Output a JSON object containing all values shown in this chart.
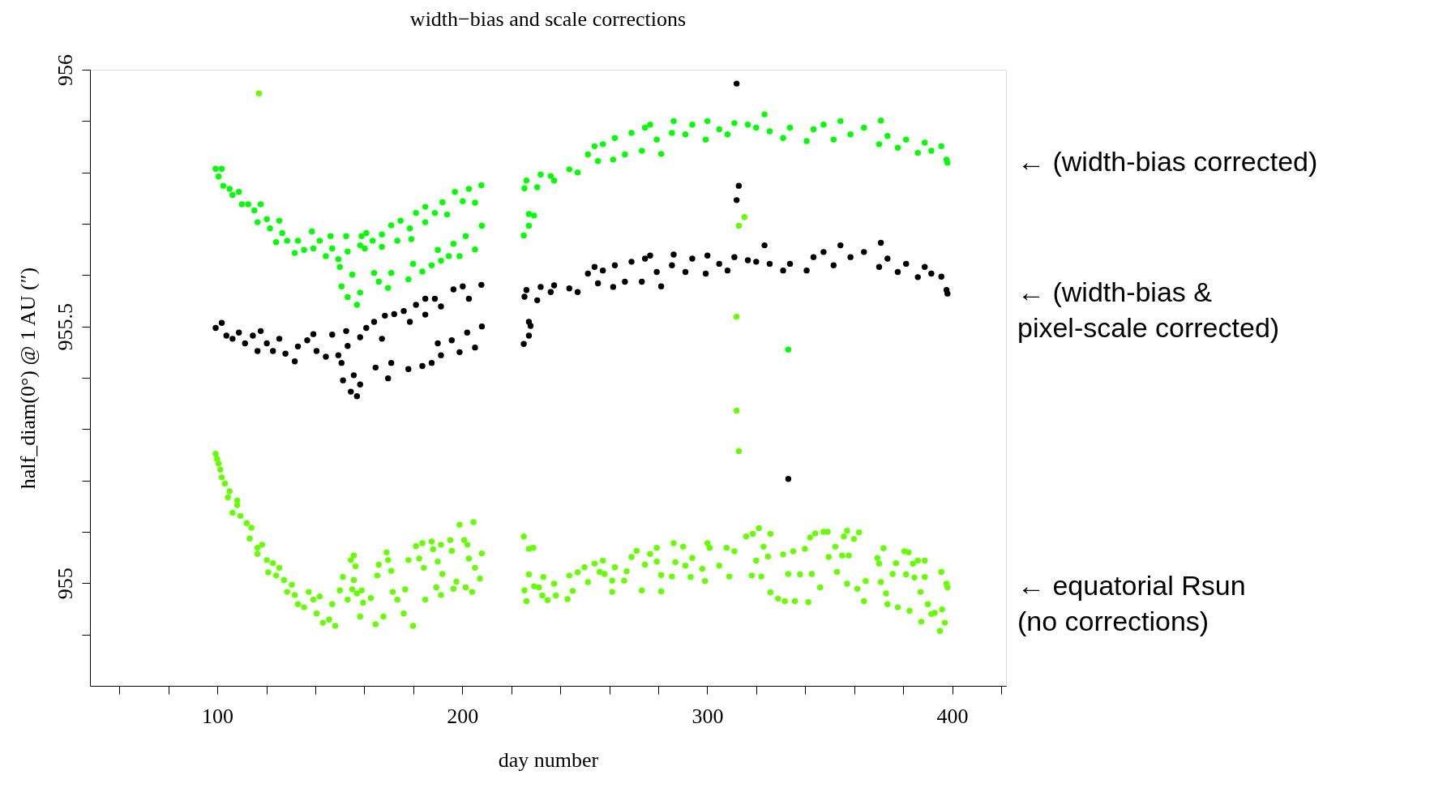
{
  "chart_data": {
    "type": "scatter",
    "title": "width−bias and scale corrections",
    "xlabel": "day number",
    "ylabel": "half_diam(0°) @ 1 AU  (″)",
    "xlim": [
      48,
      422
    ],
    "ylim": [
      954.8,
      956
    ],
    "xticks": [
      {
        "value": 60,
        "label": null
      },
      {
        "value": 80,
        "label": null
      },
      100,
      {
        "value": 120,
        "label": null
      },
      {
        "value": 140,
        "label": null
      },
      {
        "value": 160,
        "label": null
      },
      {
        "value": 180,
        "label": null
      },
      200,
      {
        "value": 220,
        "label": null
      },
      {
        "value": 240,
        "label": null
      },
      {
        "value": 260,
        "label": null
      },
      {
        "value": 280,
        "label": null
      },
      300,
      {
        "value": 320,
        "label": null
      },
      {
        "value": 340,
        "label": null
      },
      {
        "value": 360,
        "label": null
      },
      {
        "value": 380,
        "label": null
      },
      400,
      {
        "value": 420,
        "label": null
      }
    ],
    "yticks": [
      {
        "value": 954.9,
        "label": null
      },
      955,
      {
        "value": 955.1,
        "label": null
      },
      {
        "value": 955.2,
        "label": null
      },
      {
        "value": 955.3,
        "label": null
      },
      {
        "value": 955.4,
        "label": null
      },
      955.5,
      {
        "value": 955.6,
        "label": null
      },
      {
        "value": 955.7,
        "label": null
      },
      {
        "value": 955.8,
        "label": null
      },
      {
        "value": 955.9,
        "label": null
      },
      956
    ],
    "grid": false,
    "marker": "circle",
    "series": [
      {
        "name": "← (width-bias corrected)",
        "color": "#00ff00",
        "x": [
          99.3,
          101.8,
          100.5,
          102.4,
          105,
          106.2,
          108.8,
          110,
          112.6,
          115.1,
          117.7,
          116.4,
          120.2,
          121.5,
          125.3,
          124,
          126.5,
          128.5,
          131.6,
          132.9,
          135.4,
          138.6,
          139.2,
          141.8,
          144.3,
          146.2,
          146.9,
          149.4,
          150,
          152.6,
          153.2,
          158.9,
          158.3,
          160.8,
          160.2,
          163.4,
          167.2,
          167.2,
          171,
          173.5,
          174.8,
          178.6,
          179.2,
          181.1,
          184.9,
          184.9,
          188.8,
          191.9,
          193.8,
          197,
          200.2,
          202.7,
          205.2,
          207.8,
          150.7,
          155.1,
          153.2,
          157,
          158.3,
          164,
          165.9,
          169.7,
          171,
          178,
          179.9,
          183.7,
          187.5,
          190,
          191.3,
          194.5,
          196.4,
          198.9,
          201.4,
          205.2,
          208,
          225.1,
          227.2,
          227.2,
          229.3,
          225.4,
          226.2,
          230.6,
          232,
          236.1,
          237.5,
          243.7,
          247.1,
          251.3,
          254,
          257.4,
          255.4,
          261.6,
          262.3,
          266.4,
          269.1,
          273.3,
          274.6,
          276.7,
          279.4,
          281.2,
          285.6,
          286.3,
          291.1,
          293.9,
          299.4,
          300.1,
          304.9,
          308.3,
          311.1,
          316.6,
          320,
          323.4,
          325.5,
          331,
          333.8,
          340.6,
          343.4,
          347.5,
          351.6,
          354.4,
          358.5,
          364,
          370.9,
          370.2,
          373.6,
          377.8,
          381.2,
          386,
          388.8,
          391.5,
          395.6,
          397.7,
          398.1,
          333.1
        ],
        "values": [
          955.807,
          955.807,
          955.792,
          955.774,
          955.768,
          955.756,
          955.762,
          955.738,
          955.738,
          955.726,
          955.738,
          955.703,
          955.709,
          955.691,
          955.706,
          955.664,
          955.682,
          955.667,
          955.643,
          955.667,
          955.649,
          955.685,
          955.652,
          955.667,
          955.637,
          955.676,
          955.652,
          955.631,
          955.616,
          955.676,
          955.646,
          955.676,
          955.658,
          955.682,
          955.652,
          955.667,
          955.679,
          955.655,
          955.697,
          955.667,
          955.706,
          955.691,
          955.67,
          955.721,
          955.733,
          955.703,
          955.721,
          955.742,
          955.718,
          955.762,
          955.744,
          955.768,
          955.741,
          955.775,
          955.578,
          955.601,
          955.557,
          955.542,
          955.566,
          955.604,
          955.587,
          955.575,
          955.604,
          955.592,
          955.622,
          955.607,
          955.619,
          955.649,
          955.628,
          955.637,
          955.661,
          955.637,
          955.676,
          955.65,
          955.696,
          955.677,
          955.696,
          955.719,
          955.716,
          955.769,
          955.784,
          955.771,
          955.796,
          955.793,
          955.784,
          955.806,
          955.8,
          955.835,
          955.851,
          955.855,
          955.822,
          955.825,
          955.867,
          955.835,
          955.877,
          955.842,
          955.887,
          955.893,
          955.864,
          955.836,
          955.877,
          955.9,
          955.874,
          955.893,
          955.864,
          955.9,
          955.884,
          955.874,
          955.896,
          955.893,
          955.887,
          955.913,
          955.88,
          955.867,
          955.887,
          955.861,
          955.884,
          955.893,
          955.864,
          955.9,
          955.874,
          955.887,
          955.901,
          955.855,
          955.871,
          955.848,
          955.864,
          955.838,
          955.858,
          955.842,
          955.851,
          955.825,
          955.819,
          955.455
        ]
      },
      {
        "name": "← (width-bias &\npixel-scale corrected)",
        "color": "#000000",
        "x": [
          99.3,
          101.8,
          103.7,
          106.2,
          108.8,
          111.3,
          114.5,
          117.7,
          116.4,
          120.2,
          122.7,
          125.3,
          127.8,
          131.6,
          132.9,
          136.7,
          139.2,
          140.5,
          144.3,
          146.9,
          149.4,
          152.6,
          153.2,
          150.7,
          158.3,
          160.8,
          164,
          167.2,
          168.4,
          172.2,
          176.1,
          178.6,
          181.1,
          184.9,
          184.9,
          188.8,
          191.3,
          196.4,
          200.2,
          202.7,
          207.8,
          151.3,
          155.7,
          154.5,
          157,
          158.3,
          164.6,
          169.7,
          171,
          178,
          183.7,
          187.5,
          190,
          191.3,
          195.7,
          198.9,
          202,
          205.2,
          208,
          225.1,
          227.2,
          227.9,
          227.2,
          225.4,
          226.2,
          230.6,
          232,
          236.1,
          237.5,
          243.7,
          247.1,
          251.3,
          254,
          257.4,
          255.4,
          261.6,
          262.3,
          266.4,
          269.1,
          273.3,
          274.6,
          276.7,
          279.4,
          281.2,
          285.6,
          286.3,
          291.1,
          293.9,
          299.4,
          300.1,
          304.9,
          308.3,
          311.1,
          316.6,
          320,
          323.4,
          325.5,
          331,
          333.8,
          340.6,
          343.4,
          347.5,
          351.6,
          354.4,
          358.5,
          364,
          370.9,
          370.2,
          373.6,
          377.8,
          381.2,
          386,
          388.8,
          391.5,
          395.6,
          397.7,
          312,
          312.9,
          312,
          333.1,
          398.1
        ],
        "values": [
          955.497,
          955.507,
          955.482,
          955.476,
          955.488,
          955.467,
          955.482,
          955.491,
          955.452,
          955.467,
          955.452,
          955.476,
          955.447,
          955.432,
          955.461,
          955.473,
          955.485,
          955.452,
          955.441,
          955.484,
          955.444,
          955.491,
          955.462,
          955.429,
          955.479,
          955.497,
          955.509,
          955.476,
          955.521,
          955.524,
          955.53,
          955.509,
          955.542,
          955.554,
          955.523,
          955.554,
          955.539,
          955.572,
          955.578,
          955.554,
          955.581,
          955.395,
          955.405,
          955.373,
          955.364,
          955.387,
          955.42,
          955.399,
          955.429,
          955.417,
          955.423,
          955.429,
          955.467,
          955.444,
          955.473,
          955.45,
          955.488,
          955.459,
          955.5,
          955.466,
          955.482,
          955.501,
          955.509,
          955.558,
          955.571,
          955.551,
          955.577,
          955.567,
          955.58,
          955.574,
          955.567,
          955.603,
          955.616,
          955.609,
          955.584,
          955.577,
          955.619,
          955.587,
          955.626,
          955.587,
          955.632,
          955.638,
          955.606,
          955.578,
          955.619,
          955.64,
          955.606,
          955.632,
          955.603,
          955.638,
          955.622,
          955.609,
          955.635,
          955.629,
          955.626,
          955.658,
          955.622,
          955.609,
          955.622,
          955.609,
          955.635,
          955.645,
          955.619,
          955.658,
          955.635,
          955.645,
          955.663,
          955.616,
          955.632,
          955.606,
          955.622,
          955.596,
          955.616,
          955.603,
          955.597,
          955.571,
          955.973,
          955.774,
          955.746,
          955.203,
          955.564
        ]
      },
      {
        "name": "← equatorial Rsun\n(no corrections)",
        "color": "#66ff00",
        "x": [
          117,
          99.3,
          99.9,
          100.5,
          101.2,
          101.8,
          103.1,
          105,
          104.3,
          108.1,
          108.1,
          106.2,
          109.4,
          112,
          113.9,
          113.2,
          116.4,
          118.3,
          116.4,
          120.2,
          122.7,
          120.8,
          125.3,
          124,
          127.2,
          130.4,
          128.5,
          131.6,
          132.9,
          135.4,
          137.3,
          139.2,
          141.8,
          140.5,
          143.1,
          145.6,
          148.1,
          146.9,
          150,
          151.3,
          153.2,
          154.5,
          155.7,
          156.4,
          155.7,
          155.1,
          157,
          158.9,
          158.3,
          159.5,
          162.7,
          164.6,
          165.3,
          165.9,
          169.1,
          169.7,
          171,
          167.8,
          171.6,
          173.5,
          176.7,
          176.1,
          178,
          179.9,
          181.1,
          182.4,
          183.7,
          184.3,
          184.9,
          187.5,
          188.1,
          190,
          189.4,
          191.3,
          191.3,
          191.9,
          195.1,
          195.7,
          196.4,
          197.6,
          198.9,
          200.8,
          202.1,
          202.7,
          201.4,
          204.6,
          205.2,
          204,
          207.2,
          208,
          225.1,
          227.2,
          229,
          227.2,
          225.4,
          226.2,
          229.3,
          231.3,
          233.1,
          232.7,
          234.8,
          237.5,
          238.2,
          243,
          243.7,
          245.1,
          247.1,
          249.9,
          251.3,
          254,
          256.1,
          257.4,
          258.1,
          261.2,
          261.2,
          262.3,
          266.1,
          267.1,
          269.1,
          271.2,
          273.3,
          274.6,
          276.7,
          279.4,
          279.4,
          281.2,
          281.2,
          285.6,
          286.3,
          287,
          290.2,
          291.1,
          293.2,
          293.9,
          298,
          299.1,
          300.1,
          301,
          304.9,
          307.9,
          309,
          311.1,
          312,
          312.9,
          312.9,
          315.2,
          312,
          315.9,
          318.6,
          321.1,
          318.2,
          320,
          322.1,
          323,
          324.8,
          325.8,
          325.8,
          328.9,
          331,
          331.7,
          333.1,
          335.8,
          335.1,
          337.9,
          339.9,
          341.3,
          342,
          344.1,
          342.7,
          346.1,
          347.5,
          349.2,
          349.6,
          352.3,
          353,
          355.1,
          355.8,
          357.1,
          357.8,
          357.1,
          359.9,
          361.3,
          362,
          364,
          364.7,
          369.5,
          370.2,
          370.9,
          372,
          373,
          373.6,
          375.7,
          377.1,
          377.8,
          380.5,
          381.2,
          382.2,
          382.6,
          384,
          386,
          384.6,
          387.1,
          388.8,
          388.8,
          390.1,
          387.4,
          391.5,
          392.9,
          395,
          395.6,
          395.9,
          397,
          397.7,
          398.1
        ],
        "values": [
          955.954,
          955.252,
          955.242,
          955.233,
          955.221,
          955.206,
          955.194,
          955.179,
          955.167,
          955.161,
          955.152,
          955.137,
          955.131,
          955.117,
          955.108,
          955.087,
          955.069,
          955.075,
          955.057,
          955.045,
          955.039,
          955.021,
          955.03,
          955.015,
          955.006,
          954.997,
          954.983,
          954.977,
          954.959,
          954.953,
          954.983,
          954.968,
          954.974,
          954.941,
          954.923,
          954.929,
          954.917,
          954.959,
          954.986,
          955.012,
          954.968,
          955.045,
          955.054,
          955.033,
          955.006,
          954.988,
          954.98,
          954.986,
          954.935,
          954.962,
          954.971,
          954.92,
          955.015,
          955.036,
          955.06,
          955.045,
          955.024,
          954.935,
          954.983,
          954.968,
          954.988,
          954.941,
          955.045,
          954.917,
          955.072,
          955.048,
          955.078,
          955.03,
          954.968,
          955.081,
          955.066,
          955.042,
          954.992,
          955.075,
          954.977,
          955.018,
          955.084,
          955.063,
          954.989,
          955.003,
          955.114,
          955.084,
          955.075,
          955.048,
          954.992,
          955.119,
          955.03,
          954.983,
          955.009,
          955.058,
          955.091,
          955.067,
          955.069,
          955.017,
          954.986,
          954.965,
          954.994,
          954.992,
          955.012,
          954.976,
          954.967,
          954.999,
          954.976,
          954.969,
          955.015,
          954.985,
          955.021,
          955.031,
          955.002,
          955.038,
          955.022,
          955.044,
          955.018,
          955.005,
          954.983,
          955.031,
          955.005,
          955.023,
          955.051,
          955.063,
          954.986,
          955.036,
          955.057,
          955.069,
          955.042,
          955.016,
          954.984,
          955.013,
          955.078,
          955.041,
          955.071,
          955.034,
          955.012,
          955.049,
          955.028,
          955.004,
          955.078,
          955.069,
          955.034,
          955.069,
          955.013,
          955.062,
          955.336,
          955.257,
          955.696,
          955.713,
          955.519,
          955.091,
          955.096,
          955.107,
          955.015,
          955.044,
          955.013,
          955.071,
          955.052,
          955.096,
          954.982,
          954.97,
          955.056,
          954.965,
          955.018,
          954.965,
          955.062,
          955.017,
          955.067,
          954.963,
          955.089,
          955.097,
          955.018,
          954.992,
          955.1,
          955.1,
          955.051,
          955.071,
          955.022,
          955.054,
          955.091,
          955.102,
          955.054,
          954.999,
          955.086,
          954.989,
          955.099,
          954.965,
          955.004,
          955.049,
          955.038,
          955.002,
          955.068,
          954.98,
          954.959,
          955.018,
          955.039,
          954.953,
          955.062,
          955.017,
          955.06,
          954.946,
          955.038,
          955.044,
          955.011,
          954.983,
          955.044,
          955.012,
          954.959,
          954.925,
          954.94,
          954.942,
          954.907,
          955.022,
          954.949,
          954.923,
          954.999,
          954.992
        ]
      }
    ]
  }
}
